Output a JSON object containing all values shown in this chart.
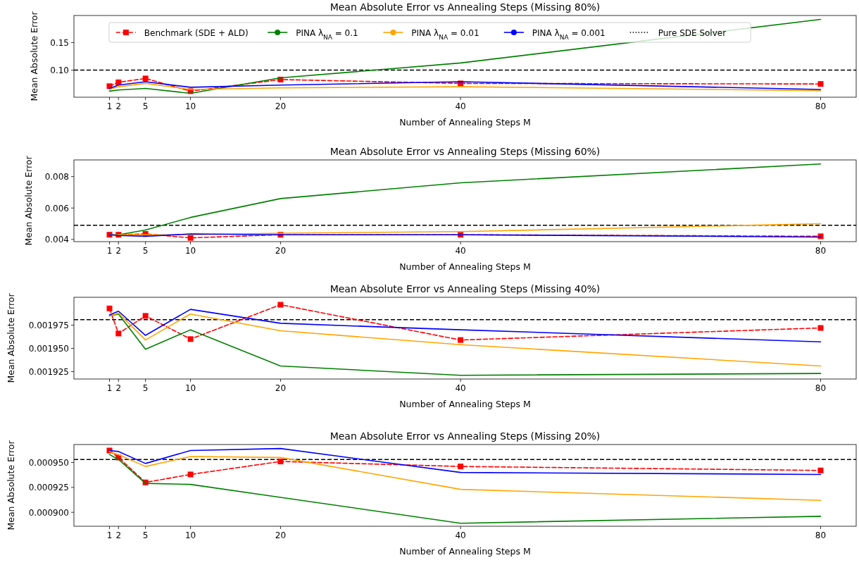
{
  "chart_data": [
    {
      "type": "line",
      "title": "Mean Absolute Error vs Annealing Steps (Missing 80%)",
      "xlabel": "Number of Annealing Steps M",
      "ylabel": "Mean Absolute Error",
      "x": [
        1,
        2,
        5,
        10,
        20,
        40,
        80
      ],
      "xlim": [
        -2.95,
        83.95
      ],
      "xticks": [
        1,
        2,
        5,
        10,
        20,
        40,
        80
      ],
      "ylim": [
        0.051,
        0.199
      ],
      "yticks": [
        {
          "value": 0.1,
          "label": "0.10"
        },
        0.15
      ],
      "legend": "top",
      "series": [
        {
          "name": "Benchmark (SDE + ALD)",
          "color": "#ff0000",
          "line_style": "dashed",
          "marker": "square",
          "values": [
            0.071,
            0.078,
            0.085,
            0.062,
            0.083,
            0.076,
            0.075
          ]
        },
        {
          "name": "PINA λ$_{NA}$ = 0.1",
          "color": "#008000",
          "values": [
            0.062,
            0.064,
            0.067,
            0.058,
            0.086,
            0.113,
            0.192
          ]
        },
        {
          "name": "PINA λ$_{NA}$ = 0.01",
          "color": "#ffa500",
          "values": [
            0.065,
            0.07,
            0.076,
            0.065,
            0.068,
            0.07,
            0.063
          ]
        },
        {
          "name": "PINA λ$_{NA}$ = 0.001",
          "color": "#0000ff",
          "values": [
            0.067,
            0.073,
            0.079,
            0.069,
            0.073,
            0.079,
            0.065
          ]
        }
      ],
      "ref_lines": [
        {
          "axis": "y",
          "value": 0.1,
          "label": "Pure SDE Solver",
          "color": "#000000",
          "line_style": "dashed"
        }
      ]
    },
    {
      "type": "line",
      "title": "Mean Absolute Error vs Annealing Steps (Missing 60%)",
      "xlabel": "Number of Annealing Steps M",
      "ylabel": "Mean Absolute Error",
      "x": [
        1,
        2,
        5,
        10,
        20,
        40,
        80
      ],
      "xlim": [
        -2.95,
        83.95
      ],
      "xticks": [
        1,
        2,
        5,
        10,
        20,
        40,
        80
      ],
      "ylim": [
        0.00386,
        0.00906
      ],
      "yticks": [
        0.004,
        0.006,
        0.008
      ],
      "series": [
        {
          "color": "#ff0000",
          "line_style": "dashed",
          "marker": "square",
          "values": [
            0.0043,
            0.0043,
            0.00435,
            0.0041,
            0.0043,
            0.0043,
            0.0042
          ]
        },
        {
          "color": "#008000",
          "values": [
            0.0043,
            0.0043,
            0.0046,
            0.0054,
            0.0066,
            0.0076,
            0.0088
          ]
        },
        {
          "color": "#ffa500",
          "values": [
            0.0043,
            0.0043,
            0.0043,
            0.0043,
            0.0044,
            0.0045,
            0.005
          ]
        },
        {
          "color": "#0000ff",
          "values": [
            0.0043,
            0.00425,
            0.0042,
            0.00435,
            0.0043,
            0.0043,
            0.00415
          ]
        }
      ],
      "ref_lines": [
        {
          "axis": "y",
          "value": 0.0049,
          "color": "#000000",
          "line_style": "dashed"
        }
      ]
    },
    {
      "type": "line",
      "title": "Mean Absolute Error vs Annealing Steps (Missing 40%)",
      "xlabel": "Number of Annealing Steps M",
      "ylabel": "Mean Absolute Error",
      "x": [
        1,
        2,
        5,
        10,
        20,
        40,
        80
      ],
      "xlim": [
        -2.95,
        83.95
      ],
      "xticks": [
        1,
        2,
        5,
        10,
        20,
        40,
        80
      ],
      "ylim": [
        0.001917,
        0.002005
      ],
      "yticks": [
        0.001925,
        {
          "value": 0.00195,
          "label": "0.001950"
        },
        0.001975
      ],
      "series": [
        {
          "color": "#ff0000",
          "line_style": "dashed",
          "marker": "square",
          "values": [
            0.001993,
            0.001966,
            0.001985,
            0.00196,
            0.001997,
            0.001959,
            0.001972
          ]
        },
        {
          "color": "#008000",
          "values": [
            0.001985,
            0.001987,
            0.001949,
            0.00197,
            0.001931,
            0.001921,
            0.001923
          ]
        },
        {
          "color": "#ffa500",
          "values": [
            0.001985,
            0.001988,
            0.001959,
            0.001987,
            0.001969,
            0.001954,
            0.001931
          ]
        },
        {
          "color": "#0000ff",
          "values": [
            0.001986,
            0.00199,
            0.001964,
            0.001992,
            0.001977,
            0.00197,
            0.001957
          ]
        }
      ],
      "ref_lines": [
        {
          "axis": "y",
          "value": 0.001981,
          "color": "#000000",
          "line_style": "dashed"
        }
      ]
    },
    {
      "type": "line",
      "title": "Mean Absolute Error vs Annealing Steps (Missing 20%)",
      "xlabel": "Number of Annealing Steps M",
      "ylabel": "Mean Absolute Error",
      "x": [
        1,
        2,
        5,
        10,
        20,
        40,
        80
      ],
      "xlim": [
        -2.95,
        83.95
      ],
      "xticks": [
        1,
        2,
        5,
        10,
        20,
        40,
        80
      ],
      "ylim": [
        0.000886,
        0.000968
      ],
      "yticks": [
        {
          "value": 0.0009,
          "label": "0.000900"
        },
        0.000925,
        {
          "value": 0.00095,
          "label": "0.000950"
        }
      ],
      "series": [
        {
          "color": "#ff0000",
          "line_style": "dashed",
          "marker": "square",
          "values": [
            0.000962,
            0.000955,
            0.00093,
            0.000938,
            0.000951,
            0.000946,
            0.000942
          ]
        },
        {
          "color": "#008000",
          "values": [
            0.000958,
            0.000953,
            0.000929,
            0.000928,
            0.000915,
            0.000889,
            0.000896
          ]
        },
        {
          "color": "#ffa500",
          "values": [
            0.000961,
            0.000958,
            0.000946,
            0.000956,
            0.000955,
            0.000923,
            0.000912
          ]
        },
        {
          "color": "#0000ff",
          "values": [
            0.000962,
            0.000961,
            0.000949,
            0.000962,
            0.000964,
            0.00094,
            0.000938
          ]
        }
      ],
      "ref_lines": [
        {
          "axis": "y",
          "value": 0.000953,
          "color": "#000000",
          "line_style": "dashed"
        }
      ]
    }
  ]
}
